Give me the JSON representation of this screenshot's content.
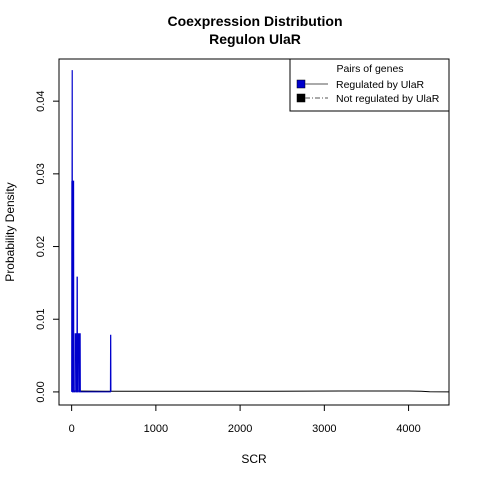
{
  "chart_data": {
    "type": "line",
    "title": "Coexpression Distribution",
    "subtitle": "Regulon UlaR",
    "xlabel": "SCR",
    "ylabel": "Probability Density",
    "xlim": [
      -150,
      4480
    ],
    "ylim": [
      -0.0018,
      0.0458
    ],
    "xticks": [
      0,
      1000,
      2000,
      3000,
      4000
    ],
    "yticks": [
      0.0,
      0.01,
      0.02,
      0.03,
      0.04
    ],
    "xtick_labels": [
      "0",
      "1000",
      "2000",
      "3000",
      "4000"
    ],
    "ytick_labels": [
      "0.00",
      "0.01",
      "0.02",
      "0.03",
      "0.04"
    ],
    "legend": {
      "title": "Pairs of genes",
      "placement": "top-right",
      "entries": [
        {
          "label": "Regulated by  UlaR",
          "color": "#0000cc",
          "line": "solid"
        },
        {
          "label": "Not regulated by  UlaR",
          "color": "#000000",
          "line": "dashdot"
        }
      ]
    },
    "series": [
      {
        "name": "Regulated by  UlaR",
        "color": "#0000cc",
        "points": [
          [
            0,
            0
          ],
          [
            2,
            0.029
          ],
          [
            4,
            0.027
          ],
          [
            6,
            0.0442
          ],
          [
            8,
            0.0442
          ],
          [
            10,
            0
          ],
          [
            14,
            0
          ],
          [
            16,
            0.029
          ],
          [
            24,
            0.029
          ],
          [
            26,
            0
          ],
          [
            40,
            0
          ],
          [
            42,
            0.008
          ],
          [
            52,
            0.008
          ],
          [
            54,
            0
          ],
          [
            62,
            0
          ],
          [
            64,
            0.0158
          ],
          [
            68,
            0.0158
          ],
          [
            70,
            0
          ],
          [
            76,
            0
          ],
          [
            78,
            0.008
          ],
          [
            88,
            0.008
          ],
          [
            90,
            0
          ],
          [
            94,
            0
          ],
          [
            96,
            0.008
          ],
          [
            102,
            0.008
          ],
          [
            104,
            0
          ],
          [
            460,
            0
          ],
          [
            462,
            0.0078
          ],
          [
            465,
            0.0078
          ],
          [
            467,
            0
          ]
        ]
      },
      {
        "name": "Not regulated by  UlaR",
        "color": "#000000",
        "points": [
          [
            0,
            0.00012
          ],
          [
            400,
            0.0001
          ],
          [
            800,
            9e-05
          ],
          [
            1200,
            9e-05
          ],
          [
            1600,
            9e-05
          ],
          [
            2000,
            9e-05
          ],
          [
            2400,
            0.0001
          ],
          [
            2800,
            0.00011
          ],
          [
            3200,
            0.00012
          ],
          [
            3600,
            0.00013
          ],
          [
            4000,
            0.00012
          ],
          [
            4150,
            9e-05
          ],
          [
            4250,
            2e-05
          ],
          [
            4480,
            0
          ]
        ]
      }
    ]
  }
}
